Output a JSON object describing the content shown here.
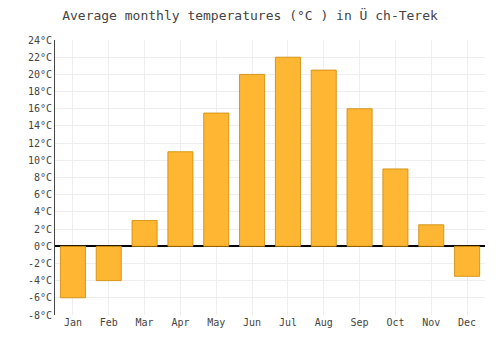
{
  "chart_data": {
    "type": "bar",
    "title": "Average monthly temperatures (°C ) in Ü ch-Terek",
    "categories": [
      "Jan",
      "Feb",
      "Mar",
      "Apr",
      "May",
      "Jun",
      "Jul",
      "Aug",
      "Sep",
      "Oct",
      "Nov",
      "Dec"
    ],
    "values": [
      -6,
      -4,
      3,
      11,
      15.5,
      20,
      22,
      20.5,
      16,
      9,
      2.5,
      -3.5
    ],
    "color": "#FFB733",
    "ylim": [
      -8,
      24
    ],
    "yticks": [
      {
        "value": -8,
        "label": "-8°C"
      },
      {
        "value": -6,
        "label": "-6°C"
      },
      {
        "value": -4,
        "label": "-4°C"
      },
      {
        "value": -2,
        "label": "-2°C"
      },
      {
        "value": 0,
        "label": "0°C"
      },
      {
        "value": 2,
        "label": "2°C"
      },
      {
        "value": 4,
        "label": "4°C"
      },
      {
        "value": 6,
        "label": "6°C"
      },
      {
        "value": 8,
        "label": "8°C"
      },
      {
        "value": 10,
        "label": "10°C"
      },
      {
        "value": 12,
        "label": "12°C"
      },
      {
        "value": 14,
        "label": "14°C"
      },
      {
        "value": 16,
        "label": "16°C"
      },
      {
        "value": 18,
        "label": "18°C"
      },
      {
        "value": 20,
        "label": "20°C"
      },
      {
        "value": 22,
        "label": "22°C"
      },
      {
        "value": 24,
        "label": "24°C"
      }
    ],
    "grid": true
  }
}
